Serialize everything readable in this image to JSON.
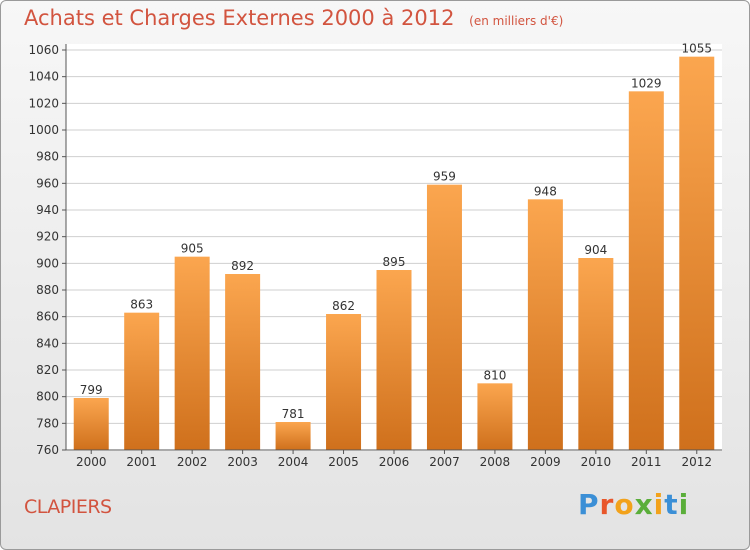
{
  "header": {
    "title": "Achats et Charges Externes 2000 à 2012",
    "subtitle": "(en milliers d'€)"
  },
  "footer": {
    "place": "CLAPIERS",
    "logo_text": "Proxiti"
  },
  "colors": {
    "title": "#d2543f",
    "bar_top": "#fba64f",
    "bar_bottom": "#cf701c",
    "grid": "#cfcfcf"
  },
  "chart_data": {
    "type": "bar",
    "title": "Achats et Charges Externes 2000 à 2012",
    "subtitle": "(en milliers d'€)",
    "categories": [
      "2000",
      "2001",
      "2002",
      "2003",
      "2004",
      "2005",
      "2006",
      "2007",
      "2008",
      "2009",
      "2010",
      "2011",
      "2012"
    ],
    "values": [
      799,
      863,
      905,
      892,
      781,
      862,
      895,
      959,
      810,
      948,
      904,
      1029,
      1055
    ],
    "ylim": [
      760,
      1060
    ],
    "yticks": [
      760,
      780,
      800,
      820,
      840,
      860,
      880,
      900,
      920,
      940,
      960,
      980,
      1000,
      1020,
      1040,
      1060
    ],
    "grid": true,
    "data_labels": true
  }
}
